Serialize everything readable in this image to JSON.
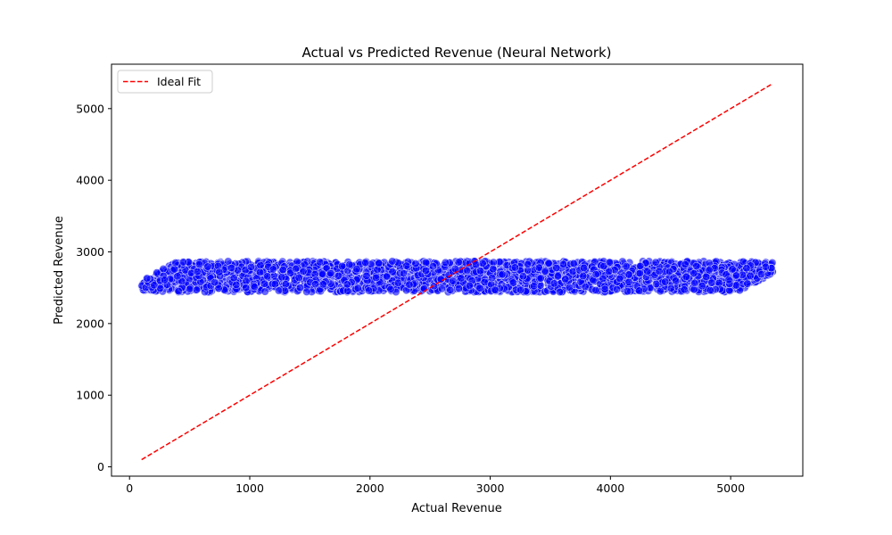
{
  "chart_data": {
    "type": "scatter",
    "title": "Actual vs Predicted Revenue (Neural Network)",
    "xlabel": "Actual Revenue",
    "ylabel": "Predicted Revenue",
    "xlim": [
      -150,
      5600
    ],
    "ylim": [
      -130,
      5620
    ],
    "xticks": [
      0,
      1000,
      2000,
      3000,
      4000,
      5000
    ],
    "yticks": [
      0,
      1000,
      2000,
      3000,
      4000,
      5000
    ],
    "grid": false,
    "legend_position": "upper-left",
    "series": [
      {
        "type": "scatter",
        "color": "#0000ff",
        "edgecolor": "#ffffff",
        "opacity": 0.6,
        "x_range": [
          100,
          5350
        ],
        "y_band": [
          2440,
          2870
        ],
        "left_edge": {
          "x": 100,
          "y_band": [
            2460,
            2600
          ]
        },
        "right_edge": {
          "x": 5350,
          "y_band": [
            2700,
            2860
          ]
        }
      },
      {
        "name": "Ideal Fit",
        "type": "line",
        "style": "dashed",
        "color": "#ff0000",
        "x": [
          100,
          5350
        ],
        "y": [
          100,
          5350
        ]
      }
    ]
  }
}
